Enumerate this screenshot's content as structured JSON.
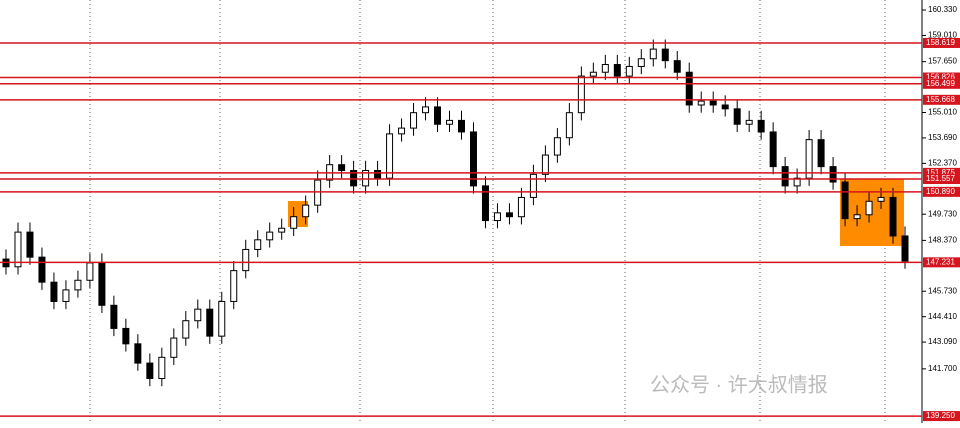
{
  "chart_data": {
    "type": "candlestick",
    "ylim": [
      138.89,
      160.85
    ],
    "yticks": [
      {
        "value": 160.33,
        "label": "160.330"
      },
      {
        "value": 159.01,
        "label": "159.010"
      },
      {
        "value": 157.65,
        "label": "157.650"
      },
      {
        "value": 155.01,
        "label": "155.010"
      },
      {
        "value": 153.69,
        "label": "153.690"
      },
      {
        "value": 152.37,
        "label": "152.370"
      },
      {
        "value": 149.73,
        "label": "149.730"
      },
      {
        "value": 148.37,
        "label": "148.370"
      },
      {
        "value": 145.73,
        "label": "145.730"
      },
      {
        "value": 144.41,
        "label": "144.410"
      },
      {
        "value": 143.09,
        "label": "143.090"
      },
      {
        "value": 141.7,
        "label": "141.700"
      }
    ],
    "levels": [
      158.619,
      156.826,
      156.499,
      155.668,
      151.875,
      151.557,
      {
        "value": 150.89,
        "label": "150.890"
      },
      147.231,
      {
        "value": 139.25,
        "label": "139.250"
      }
    ],
    "level_color": "#d6141e",
    "up_color": "#ffffff",
    "down_color": "#000000",
    "open": [
      147.4,
      147.0,
      148.8,
      147.5,
      146.2,
      145.2,
      145.8,
      146.3,
      147.2,
      145.0,
      143.8,
      143.0,
      142.0,
      141.2,
      142.3,
      143.3,
      144.2,
      144.8,
      143.4,
      145.2,
      146.8,
      147.9,
      148.4,
      148.8,
      149.0,
      149.6,
      150.2,
      151.5,
      152.3,
      152.0,
      151.2,
      152.0,
      151.6,
      153.9,
      154.2,
      155.0,
      155.3,
      154.4,
      154.6,
      154.0,
      151.2,
      149.4,
      149.8,
      149.6,
      150.6,
      151.8,
      152.8,
      153.7,
      155.0,
      156.9,
      157.1,
      157.5,
      156.9,
      157.4,
      157.8,
      158.3,
      157.7,
      157.1,
      155.4,
      155.6,
      155.4,
      155.2,
      154.4,
      154.6,
      154.0,
      152.2,
      151.2,
      151.6,
      153.6,
      152.2,
      151.4,
      149.5,
      149.7,
      150.4,
      150.6,
      148.6
    ],
    "high": [
      147.9,
      149.3,
      149.3,
      148.0,
      146.7,
      146.3,
      146.8,
      147.7,
      147.7,
      145.5,
      144.3,
      143.5,
      142.5,
      142.8,
      143.8,
      144.7,
      145.3,
      145.3,
      145.7,
      147.3,
      148.4,
      148.9,
      149.3,
      149.5,
      150.1,
      150.7,
      152.0,
      152.8,
      152.8,
      152.5,
      152.5,
      152.5,
      154.4,
      154.7,
      155.5,
      155.8,
      155.8,
      155.1,
      155.1,
      154.5,
      151.7,
      150.3,
      150.3,
      151.1,
      152.3,
      153.3,
      154.2,
      155.5,
      157.4,
      157.6,
      158.0,
      158.0,
      157.9,
      158.3,
      158.8,
      158.8,
      158.2,
      157.6,
      156.1,
      156.1,
      155.9,
      155.7,
      155.1,
      155.1,
      154.5,
      152.7,
      152.1,
      154.1,
      154.1,
      152.7,
      151.9,
      150.2,
      150.9,
      151.1,
      151.1,
      149.1
    ],
    "low": [
      146.6,
      146.6,
      147.1,
      145.8,
      144.8,
      144.8,
      145.4,
      145.9,
      144.6,
      143.4,
      142.6,
      141.6,
      140.8,
      140.8,
      141.9,
      142.9,
      143.8,
      143.0,
      143.0,
      144.8,
      146.4,
      147.5,
      148.0,
      148.4,
      148.6,
      149.2,
      149.8,
      151.1,
      151.6,
      150.8,
      150.8,
      151.2,
      151.2,
      153.5,
      153.8,
      154.6,
      154.0,
      154.0,
      153.6,
      150.8,
      149.0,
      149.0,
      149.2,
      149.2,
      150.2,
      151.4,
      152.4,
      153.3,
      154.6,
      156.5,
      156.7,
      156.5,
      156.5,
      157.0,
      157.4,
      157.3,
      156.7,
      155.0,
      155.0,
      155.0,
      154.8,
      154.0,
      154.0,
      153.6,
      151.8,
      150.8,
      150.8,
      151.2,
      151.8,
      151.0,
      149.1,
      149.1,
      149.3,
      150.0,
      148.2,
      146.9
    ],
    "close": [
      147.0,
      148.8,
      147.5,
      146.2,
      145.2,
      145.8,
      146.3,
      147.2,
      145.0,
      143.8,
      143.0,
      142.0,
      141.2,
      142.3,
      143.3,
      144.2,
      144.8,
      143.4,
      145.2,
      146.8,
      147.9,
      148.4,
      148.8,
      149.0,
      149.6,
      150.2,
      151.5,
      152.3,
      152.0,
      151.2,
      152.0,
      151.6,
      153.9,
      154.2,
      155.0,
      155.3,
      154.4,
      154.6,
      154.0,
      151.2,
      149.4,
      149.8,
      149.6,
      150.6,
      151.8,
      152.8,
      153.7,
      155.0,
      156.9,
      157.1,
      157.5,
      156.9,
      157.4,
      157.8,
      158.3,
      157.7,
      157.1,
      155.4,
      155.6,
      155.4,
      155.2,
      154.4,
      154.6,
      154.0,
      152.2,
      151.2,
      151.6,
      153.6,
      152.2,
      151.4,
      149.5,
      149.7,
      150.4,
      150.6,
      148.6,
      147.3
    ]
  },
  "watermark": "公众号 · 许大叔情报"
}
